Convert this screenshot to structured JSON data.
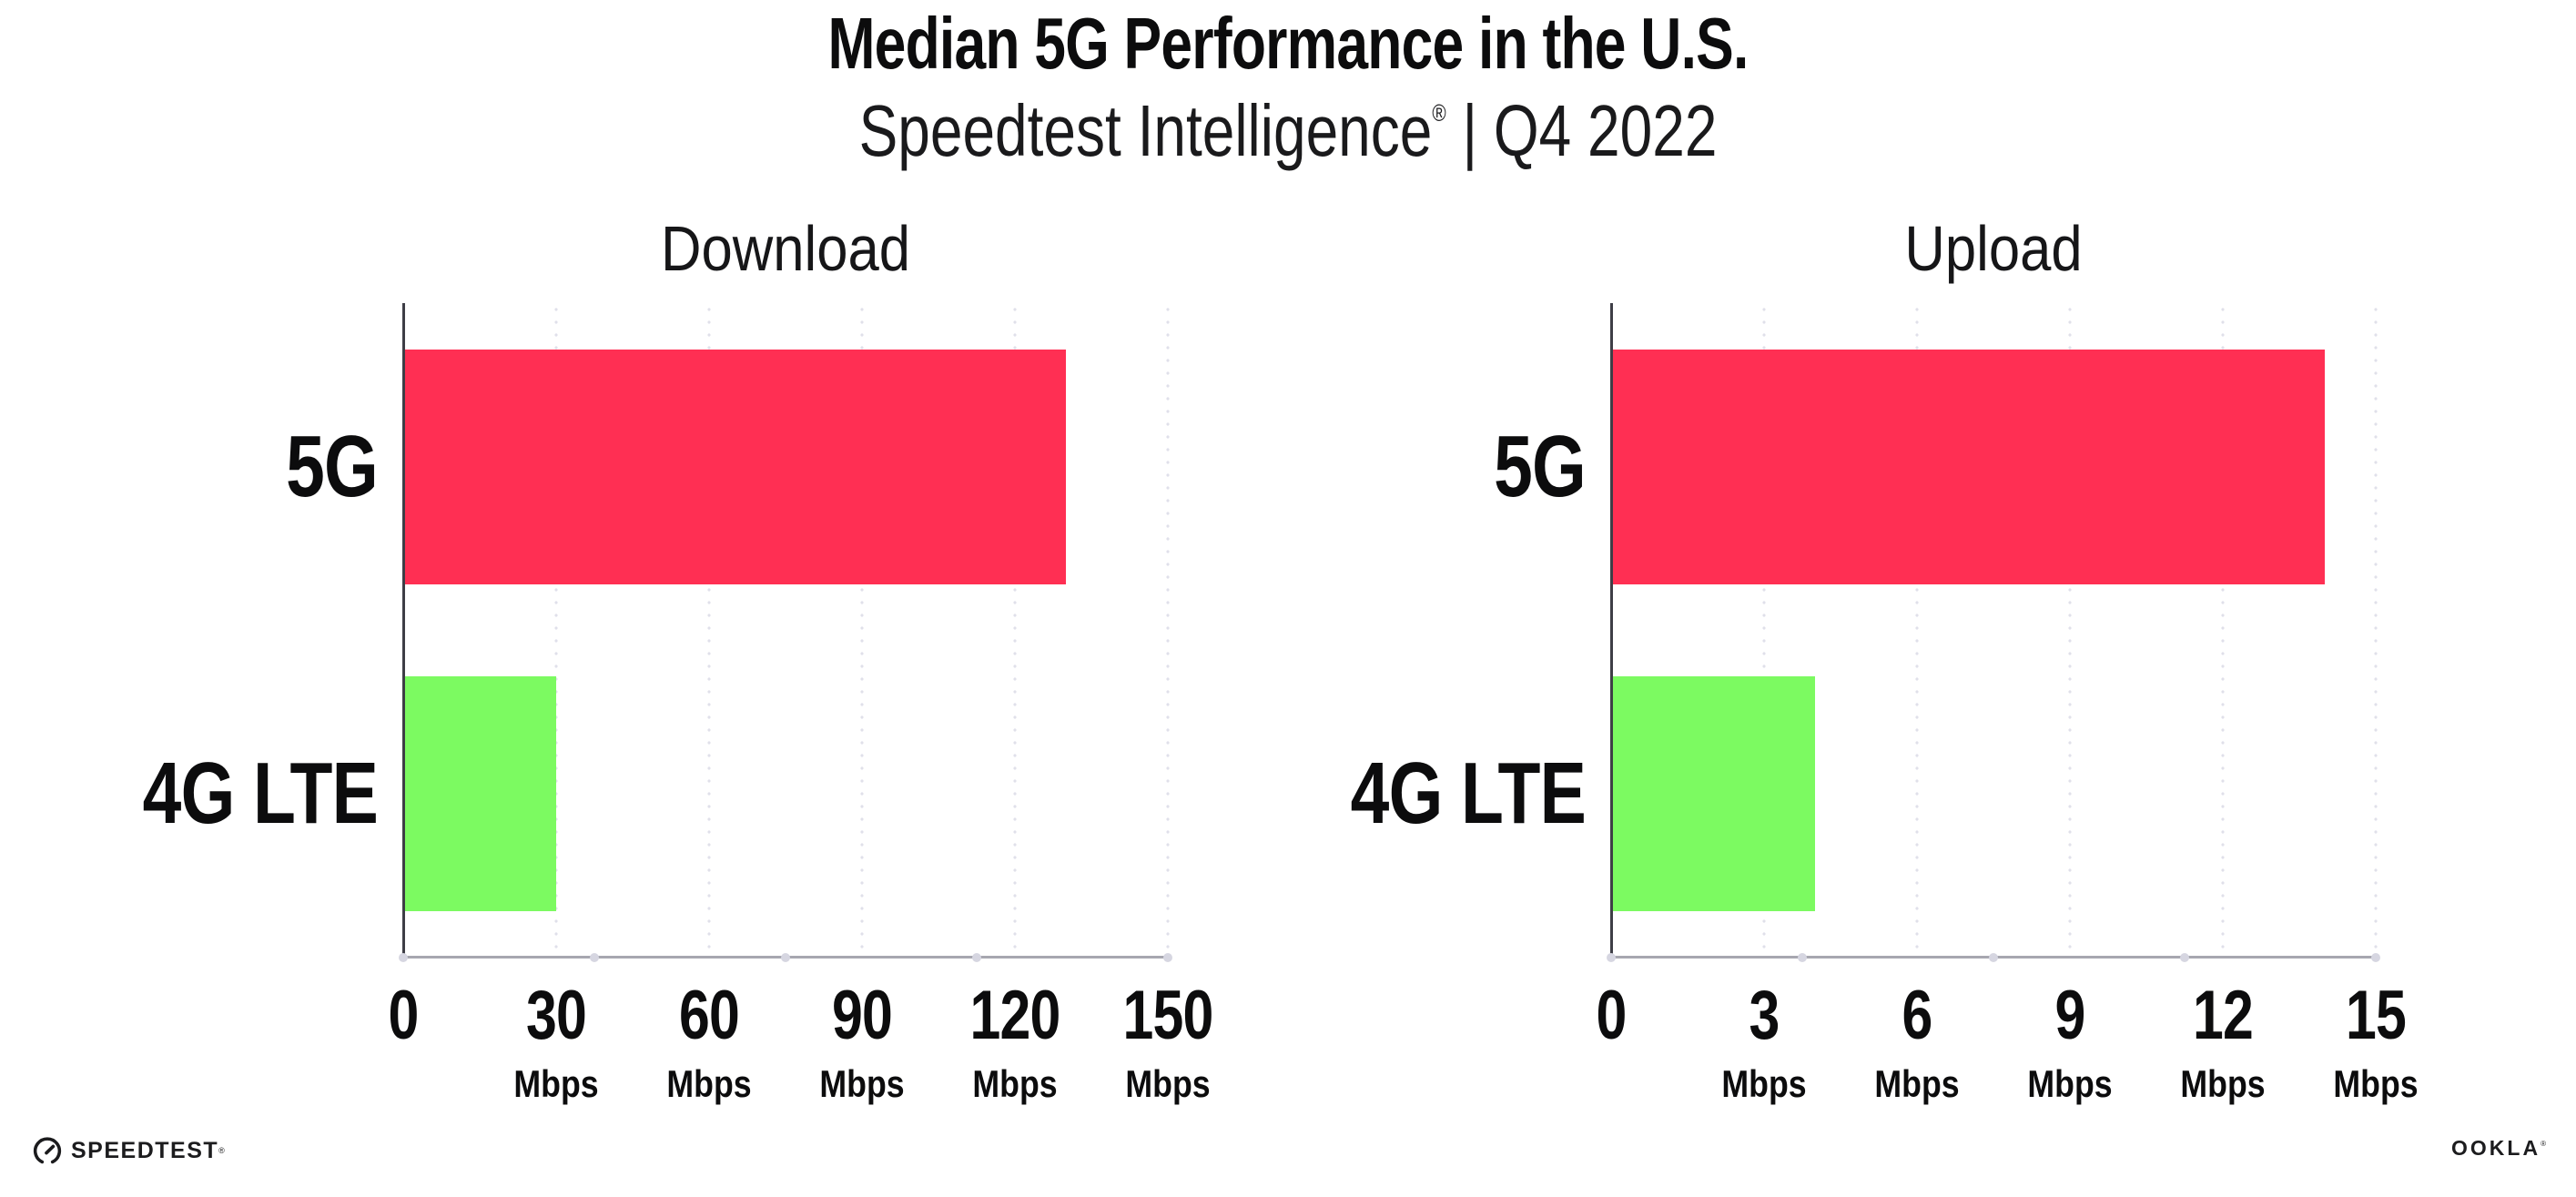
{
  "header": {
    "title": "Median 5G Performance in the U.S.",
    "subtitle": {
      "brand": "Speedtest Intelligence",
      "reg": "®",
      "rest": " | Q4 2022"
    }
  },
  "chart_data": [
    {
      "type": "bar",
      "orientation": "horizontal",
      "title": "Download",
      "categories": [
        "5G",
        "4G LTE"
      ],
      "values": [
        130,
        30
      ],
      "unit": "Mbps",
      "xlim": [
        0,
        150
      ],
      "xticks": [
        0,
        30,
        60,
        90,
        120,
        150
      ],
      "grid": "vertical-dotted",
      "legend": "none",
      "bar_colors": [
        "#FF2F53",
        "#7CFA61"
      ]
    },
    {
      "type": "bar",
      "orientation": "horizontal",
      "title": "Upload",
      "categories": [
        "5G",
        "4G LTE"
      ],
      "values": [
        14,
        4
      ],
      "unit": "Mbps",
      "xlim": [
        0,
        15
      ],
      "xticks": [
        0,
        3,
        6,
        9,
        12,
        15
      ],
      "grid": "vertical-dotted",
      "legend": "none",
      "bar_colors": [
        "#FF2F53",
        "#7CFA61"
      ]
    }
  ],
  "footer": {
    "speedtest": "SPEEDTEST",
    "speedtest_reg": "®",
    "ookla": "OOKLA",
    "ookla_reg": "®"
  },
  "colors": {
    "bar_5g": "#FF2F53",
    "bar_4g_lte": "#7CFA61",
    "y_spine": "#3e3e46",
    "x_axis": "#a7a7b0",
    "grid_dot": "#e0e0ea",
    "text": "#0c0c0d",
    "background": "#ffffff"
  }
}
